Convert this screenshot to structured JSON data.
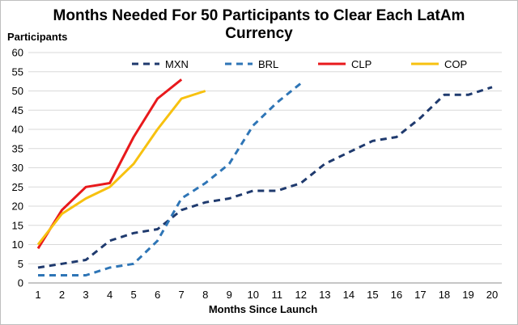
{
  "chart_data": {
    "type": "line",
    "title_line1": "Months Needed For 50 Participants to Clear Each LatAm",
    "title_line2": "Currency",
    "ylabel": "Participants",
    "xlabel": "Months Since Launch",
    "ylim": [
      0,
      60
    ],
    "y_ticks": [
      0,
      5,
      10,
      15,
      20,
      25,
      30,
      35,
      40,
      45,
      50,
      55,
      60
    ],
    "x_ticks": [
      1,
      2,
      3,
      4,
      5,
      6,
      7,
      8,
      9,
      10,
      11,
      12,
      13,
      14,
      15,
      16,
      17,
      18,
      19,
      20
    ],
    "grid": "horizontal",
    "legend_position": "top",
    "series": [
      {
        "name": "MXN",
        "color": "#1f3a6e",
        "style": "dashed",
        "x": [
          1,
          2,
          3,
          4,
          5,
          6,
          7,
          8,
          9,
          10,
          11,
          12,
          13,
          14,
          15,
          16,
          17,
          18,
          19,
          20
        ],
        "values": [
          4,
          5,
          6,
          11,
          13,
          14,
          19,
          21,
          22,
          24,
          24,
          26,
          31,
          34,
          37,
          38,
          43,
          49,
          49,
          51
        ]
      },
      {
        "name": "BRL",
        "color": "#2e75b6",
        "style": "dashed",
        "x": [
          1,
          2,
          3,
          4,
          5,
          6,
          7,
          8,
          9,
          10,
          11,
          12
        ],
        "values": [
          2,
          2,
          2,
          4,
          5,
          11,
          22,
          26,
          31,
          41,
          47,
          52
        ]
      },
      {
        "name": "CLP",
        "color": "#e8191c",
        "style": "solid",
        "x": [
          1,
          2,
          3,
          4,
          5,
          6,
          7
        ],
        "values": [
          9,
          19,
          25,
          26,
          38,
          48,
          53
        ]
      },
      {
        "name": "COP",
        "color": "#f7c10f",
        "style": "solid",
        "x": [
          1,
          2,
          3,
          4,
          5,
          6,
          7,
          8
        ],
        "values": [
          10,
          18,
          22,
          25,
          31,
          40,
          48,
          50
        ]
      }
    ]
  }
}
